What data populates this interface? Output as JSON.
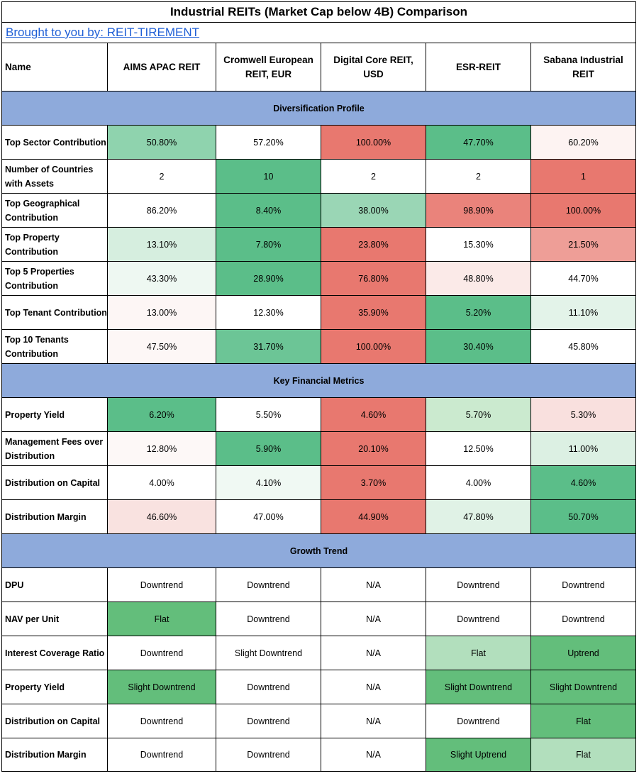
{
  "title": "Industrial REITs (Market Cap below 4B) Comparison",
  "link_text": "Brought to you by: REIT-TIREMENT",
  "colors": {
    "section": "#8eaadb",
    "link": "#1f5fd6"
  },
  "columns": [
    "Name",
    "AIMS APAC REIT",
    "Cromwell European REIT, EUR",
    "Digital Core REIT, USD",
    "ESR-REIT",
    "Sabana Industrial REIT"
  ],
  "sections": [
    {
      "title": "Diversification Profile",
      "rows": [
        {
          "label": "Top Sector Contribution",
          "cells": [
            {
              "v": "50.80%",
              "bg": "#8fd3ae"
            },
            {
              "v": "57.20%",
              "bg": "#ffffff"
            },
            {
              "v": "100.00%",
              "bg": "#e8786f"
            },
            {
              "v": "47.70%",
              "bg": "#5bbe89"
            },
            {
              "v": "60.20%",
              "bg": "#fdf3f2"
            }
          ]
        },
        {
          "label": "Number of Countries with Assets",
          "cells": [
            {
              "v": "2",
              "bg": "#ffffff"
            },
            {
              "v": "10",
              "bg": "#5bbe89"
            },
            {
              "v": "2",
              "bg": "#ffffff"
            },
            {
              "v": "2",
              "bg": "#ffffff"
            },
            {
              "v": "1",
              "bg": "#e8786f"
            }
          ]
        },
        {
          "label": "Top Geographical Contribution",
          "cells": [
            {
              "v": "86.20%",
              "bg": "#ffffff"
            },
            {
              "v": "8.40%",
              "bg": "#5bbe89"
            },
            {
              "v": "38.00%",
              "bg": "#9ad6b5"
            },
            {
              "v": "98.90%",
              "bg": "#ea837b"
            },
            {
              "v": "100.00%",
              "bg": "#e8786f"
            }
          ]
        },
        {
          "label": "Top Property Contribution",
          "cells": [
            {
              "v": "13.10%",
              "bg": "#d6eedf"
            },
            {
              "v": "7.80%",
              "bg": "#5bbe89"
            },
            {
              "v": "23.80%",
              "bg": "#e8786f"
            },
            {
              "v": "15.30%",
              "bg": "#ffffff"
            },
            {
              "v": "21.50%",
              "bg": "#ee9e97"
            }
          ]
        },
        {
          "label": "Top 5 Properties Contribution",
          "cells": [
            {
              "v": "43.30%",
              "bg": "#eef8f2"
            },
            {
              "v": "28.90%",
              "bg": "#5bbe89"
            },
            {
              "v": "76.80%",
              "bg": "#e8786f"
            },
            {
              "v": "48.80%",
              "bg": "#fbeae8"
            },
            {
              "v": "44.70%",
              "bg": "#ffffff"
            }
          ]
        },
        {
          "label": "Top Tenant Contribution",
          "cells": [
            {
              "v": "13.00%",
              "bg": "#fdf6f5"
            },
            {
              "v": "12.30%",
              "bg": "#ffffff"
            },
            {
              "v": "35.90%",
              "bg": "#e8786f"
            },
            {
              "v": "5.20%",
              "bg": "#5bbe89"
            },
            {
              "v": "11.10%",
              "bg": "#e3f3e9"
            }
          ]
        },
        {
          "label": "Top 10 Tenants Contribution",
          "cells": [
            {
              "v": "47.50%",
              "bg": "#fdf7f6"
            },
            {
              "v": "31.70%",
              "bg": "#6cc596"
            },
            {
              "v": "100.00%",
              "bg": "#e8786f"
            },
            {
              "v": "30.40%",
              "bg": "#5bbe89"
            },
            {
              "v": "45.80%",
              "bg": "#ffffff"
            }
          ]
        }
      ]
    },
    {
      "title": "Key Financial Metrics",
      "rows": [
        {
          "label": "Property Yield",
          "cells": [
            {
              "v": "6.20%",
              "bg": "#5bbe89"
            },
            {
              "v": "5.50%",
              "bg": "#ffffff"
            },
            {
              "v": "4.60%",
              "bg": "#e8786f"
            },
            {
              "v": "5.70%",
              "bg": "#cbeacf"
            },
            {
              "v": "5.30%",
              "bg": "#f9e0de"
            }
          ]
        },
        {
          "label": "Management Fees over Distribution",
          "cells": [
            {
              "v": "12.80%",
              "bg": "#fdf8f7"
            },
            {
              "v": "5.90%",
              "bg": "#5bbe89"
            },
            {
              "v": "20.10%",
              "bg": "#e8786f"
            },
            {
              "v": "12.50%",
              "bg": "#ffffff"
            },
            {
              "v": "11.00%",
              "bg": "#dcf0e3"
            }
          ]
        },
        {
          "label": "Distribution on Capital",
          "cells": [
            {
              "v": "4.00%",
              "bg": "#ffffff"
            },
            {
              "v": "4.10%",
              "bg": "#f0f9f3"
            },
            {
              "v": "3.70%",
              "bg": "#e8786f"
            },
            {
              "v": "4.00%",
              "bg": "#ffffff"
            },
            {
              "v": "4.60%",
              "bg": "#5bbe89"
            }
          ]
        },
        {
          "label": "Distribution Margin",
          "cells": [
            {
              "v": "46.60%",
              "bg": "#f9e2e0"
            },
            {
              "v": "47.00%",
              "bg": "#ffffff"
            },
            {
              "v": "44.90%",
              "bg": "#e8786f"
            },
            {
              "v": "47.80%",
              "bg": "#e0f2e6"
            },
            {
              "v": "50.70%",
              "bg": "#5bbe89"
            }
          ]
        }
      ]
    },
    {
      "title": "Growth Trend",
      "rows": [
        {
          "label": "DPU",
          "cells": [
            {
              "v": "Downtrend",
              "bg": "#ffffff"
            },
            {
              "v": "Downtrend",
              "bg": "#ffffff"
            },
            {
              "v": "N/A",
              "bg": "#ffffff"
            },
            {
              "v": "Downtrend",
              "bg": "#ffffff"
            },
            {
              "v": "Downtrend",
              "bg": "#ffffff"
            }
          ]
        },
        {
          "label": "NAV per Unit",
          "cells": [
            {
              "v": "Flat",
              "bg": "#63be7b"
            },
            {
              "v": "Downtrend",
              "bg": "#ffffff"
            },
            {
              "v": "N/A",
              "bg": "#ffffff"
            },
            {
              "v": "Downtrend",
              "bg": "#ffffff"
            },
            {
              "v": "Downtrend",
              "bg": "#ffffff"
            }
          ]
        },
        {
          "label": "Interest Coverage Ratio",
          "cells": [
            {
              "v": "Downtrend",
              "bg": "#ffffff"
            },
            {
              "v": "Slight Downtrend",
              "bg": "#ffffff"
            },
            {
              "v": "N/A",
              "bg": "#ffffff"
            },
            {
              "v": "Flat",
              "bg": "#b2dfbd"
            },
            {
              "v": "Uptrend",
              "bg": "#63be7b"
            }
          ]
        },
        {
          "label": "Property Yield",
          "cells": [
            {
              "v": "Slight Downtrend",
              "bg": "#63be7b"
            },
            {
              "v": "Downtrend",
              "bg": "#ffffff"
            },
            {
              "v": "N/A",
              "bg": "#ffffff"
            },
            {
              "v": "Slight Downtrend",
              "bg": "#63be7b"
            },
            {
              "v": "Slight Downtrend",
              "bg": "#63be7b"
            }
          ]
        },
        {
          "label": "Distribution on Capital",
          "cells": [
            {
              "v": "Downtrend",
              "bg": "#ffffff"
            },
            {
              "v": "Downtrend",
              "bg": "#ffffff"
            },
            {
              "v": "N/A",
              "bg": "#ffffff"
            },
            {
              "v": "Downtrend",
              "bg": "#ffffff"
            },
            {
              "v": "Flat",
              "bg": "#63be7b"
            }
          ]
        },
        {
          "label": "Distribution Margin",
          "cells": [
            {
              "v": "Downtrend",
              "bg": "#ffffff"
            },
            {
              "v": "Downtrend",
              "bg": "#ffffff"
            },
            {
              "v": "N/A",
              "bg": "#ffffff"
            },
            {
              "v": "Slight Uptrend",
              "bg": "#63be7b"
            },
            {
              "v": "Flat",
              "bg": "#b2dfbd"
            }
          ]
        }
      ]
    }
  ]
}
